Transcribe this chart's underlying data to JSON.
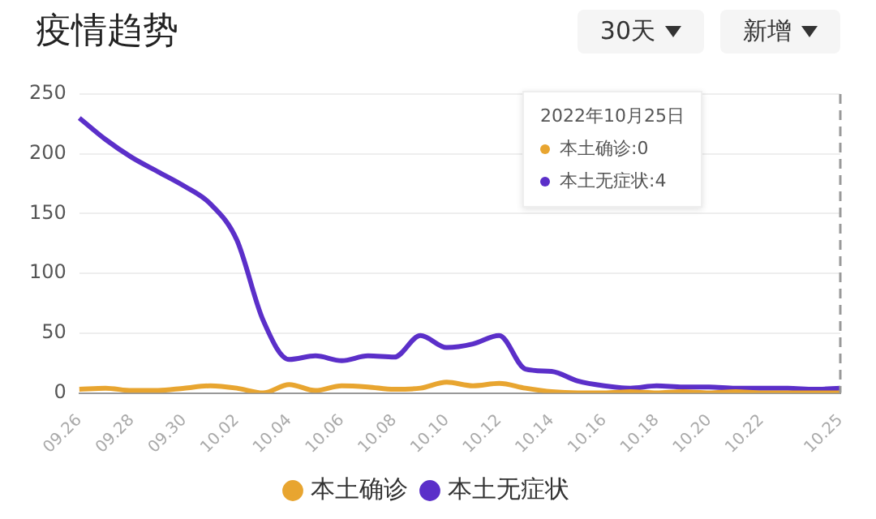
{
  "chart_data": {
    "type": "line",
    "title": "疫情趋势",
    "annotations": [
      "30天",
      "新增",
      "2022年10月25日",
      "本土确诊:0",
      "本土无症状:4"
    ],
    "categories": [
      "09.26",
      null,
      "09.28",
      null,
      "09.30",
      null,
      "10.02",
      null,
      "10.04",
      null,
      "10.06",
      null,
      "10.08",
      null,
      "10.10",
      null,
      "10.12",
      null,
      "10.14",
      null,
      "10.16",
      null,
      "10.18",
      null,
      "10.20",
      null,
      "10.22",
      null,
      null,
      "10.25"
    ],
    "series": [
      {
        "name": "本土确诊",
        "color": "#e8a530",
        "values": [
          3,
          4,
          2,
          2,
          4,
          6,
          4,
          0,
          7,
          2,
          6,
          5,
          3,
          4,
          9,
          6,
          8,
          4,
          1,
          0,
          0,
          1,
          0,
          1,
          0,
          1,
          0,
          0,
          0,
          0
        ]
      },
      {
        "name": "本土无症状",
        "color": "#5b2fc9",
        "values": [
          230,
          212,
          197,
          185,
          173,
          158,
          128,
          61,
          28,
          31,
          27,
          31,
          30,
          48,
          38,
          41,
          48,
          20,
          18,
          10,
          6,
          4,
          6,
          5,
          5,
          4,
          4,
          4,
          3,
          4
        ]
      }
    ],
    "ylim": [
      0,
      250
    ],
    "yticks": [
      0,
      50,
      100,
      150,
      200,
      250
    ],
    "ref_lines": [
      {
        "axis": "x",
        "value": "10.25",
        "color": "#999999",
        "line_style": "dashed"
      }
    ],
    "grid": "y",
    "legend": "bottom",
    "marker": "none",
    "line_style": "solid"
  }
}
